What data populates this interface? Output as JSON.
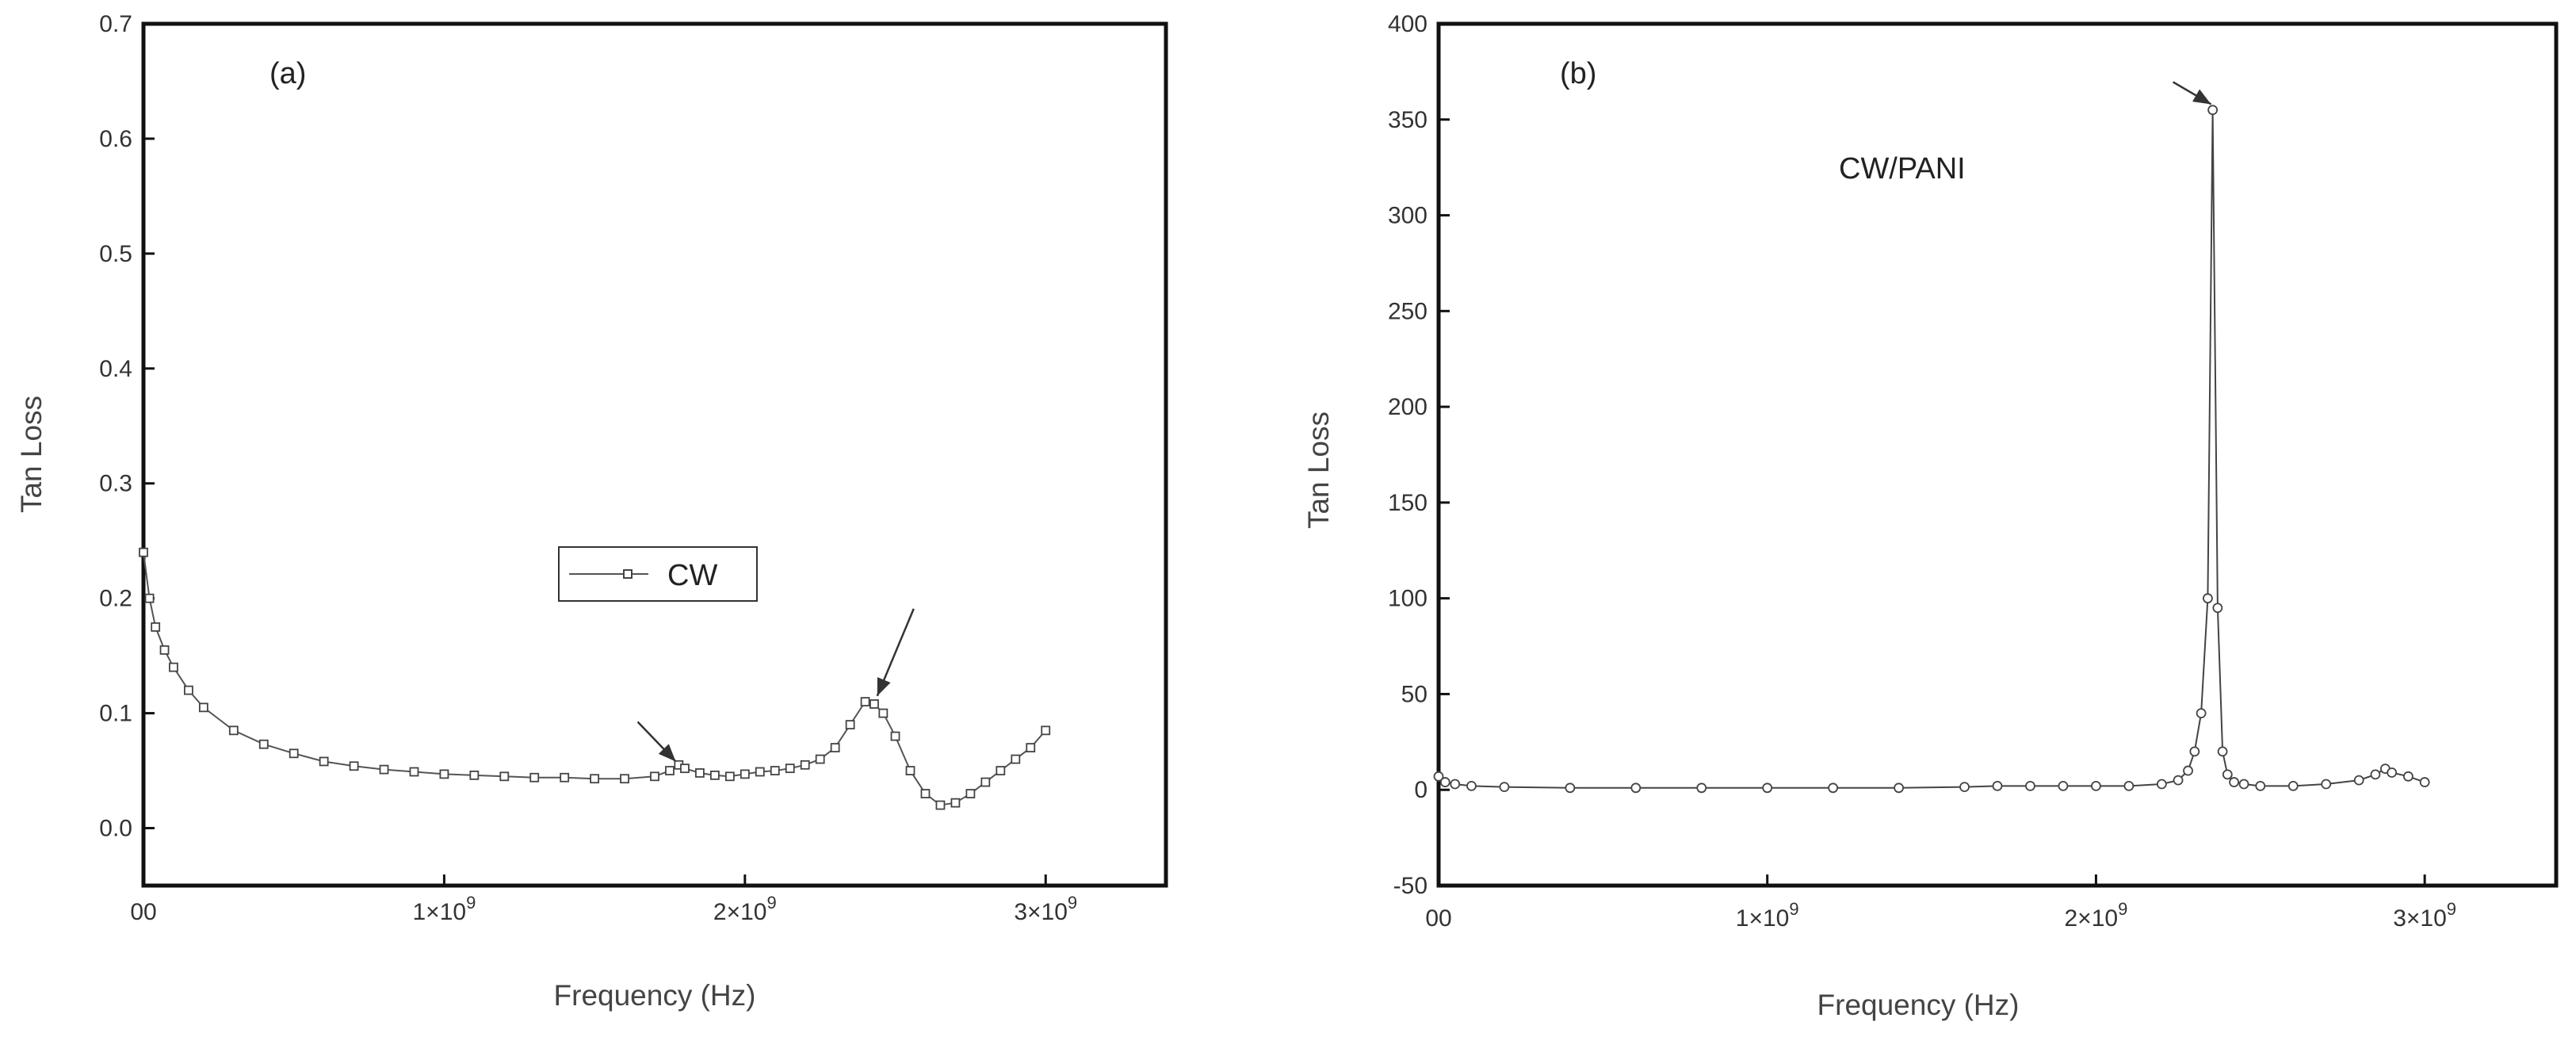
{
  "chart_data": [
    {
      "type": "line",
      "panel_label": "(a)",
      "xlabel": "Frequency (Hz)",
      "ylabel": "Tan Loss",
      "xlim": [
        0,
        3400000000
      ],
      "ylim": [
        -0.05,
        0.7
      ],
      "x_ticks": [
        {
          "value": 0,
          "mant": "00",
          "exp": ""
        },
        {
          "value": 1000000000,
          "mant": "1×10",
          "exp": "9"
        },
        {
          "value": 2000000000,
          "mant": "2×10",
          "exp": "9"
        },
        {
          "value": 3000000000,
          "mant": "3×10",
          "exp": "9"
        }
      ],
      "y_ticks": [
        {
          "value": 0.0,
          "label": "0.0"
        },
        {
          "value": 0.1,
          "label": "0.1"
        },
        {
          "value": 0.2,
          "label": "0.2"
        },
        {
          "value": 0.3,
          "label": "0.3"
        },
        {
          "value": 0.4,
          "label": "0.4"
        },
        {
          "value": 0.5,
          "label": "0.5"
        },
        {
          "value": 0.6,
          "label": "0.6"
        },
        {
          "value": 0.7,
          "label": "0.7"
        }
      ],
      "legend": {
        "position": "center-right",
        "entries": [
          "CW"
        ]
      },
      "series": [
        {
          "name": "CW",
          "color": "#555555",
          "x": [
            0,
            20000000,
            40000000,
            70000000,
            100000000,
            150000000,
            200000000,
            300000000,
            400000000,
            500000000,
            600000000,
            700000000,
            800000000,
            900000000,
            1000000000,
            1100000000,
            1200000000,
            1300000000,
            1400000000,
            1500000000,
            1600000000,
            1700000000,
            1750000000,
            1780000000,
            1800000000,
            1850000000,
            1900000000,
            1950000000,
            2000000000,
            2050000000,
            2100000000,
            2150000000,
            2200000000,
            2250000000,
            2300000000,
            2350000000,
            2400000000,
            2430000000,
            2460000000,
            2500000000,
            2550000000,
            2600000000,
            2650000000,
            2700000000,
            2750000000,
            2800000000,
            2850000000,
            2900000000,
            2950000000,
            3000000000
          ],
          "y": [
            0.24,
            0.2,
            0.175,
            0.155,
            0.14,
            0.12,
            0.105,
            0.085,
            0.073,
            0.065,
            0.058,
            0.054,
            0.051,
            0.049,
            0.047,
            0.046,
            0.045,
            0.044,
            0.044,
            0.043,
            0.043,
            0.045,
            0.05,
            0.055,
            0.052,
            0.048,
            0.046,
            0.045,
            0.047,
            0.049,
            0.05,
            0.052,
            0.055,
            0.06,
            0.07,
            0.09,
            0.11,
            0.108,
            0.1,
            0.08,
            0.05,
            0.03,
            0.02,
            0.022,
            0.03,
            0.04,
            0.05,
            0.06,
            0.07,
            0.085
          ]
        }
      ],
      "arrows": [
        {
          "tip_x": 1770000000,
          "tip_y": 0.058
        },
        {
          "tip_x": 2440000000,
          "tip_y": 0.115
        }
      ]
    },
    {
      "type": "line",
      "panel_label": "(b)",
      "annotation": "CW/PANI",
      "xlabel": "Frequency (Hz)",
      "ylabel": "Tan Loss",
      "xlim": [
        0,
        3400000000
      ],
      "ylim": [
        -50,
        400
      ],
      "x_ticks": [
        {
          "value": 0,
          "mant": "00",
          "exp": ""
        },
        {
          "value": 1000000000,
          "mant": "1×10",
          "exp": "9"
        },
        {
          "value": 2000000000,
          "mant": "2×10",
          "exp": "9"
        },
        {
          "value": 3000000000,
          "mant": "3×10",
          "exp": "9"
        }
      ],
      "y_ticks": [
        {
          "value": -50,
          "label": "-50"
        },
        {
          "value": 0,
          "label": "0"
        },
        {
          "value": 50,
          "label": "50"
        },
        {
          "value": 100,
          "label": "100"
        },
        {
          "value": 150,
          "label": "150"
        },
        {
          "value": 200,
          "label": "200"
        },
        {
          "value": 250,
          "label": "250"
        },
        {
          "value": 300,
          "label": "300"
        },
        {
          "value": 350,
          "label": "350"
        },
        {
          "value": 400,
          "label": "400"
        }
      ],
      "series": [
        {
          "name": "",
          "color": "#555555",
          "x": [
            0,
            20000000,
            50000000,
            100000000,
            200000000,
            400000000,
            600000000,
            800000000,
            1000000000,
            1200000000,
            1400000000,
            1600000000,
            1700000000,
            1800000000,
            1900000000,
            2000000000,
            2100000000,
            2200000000,
            2250000000,
            2280000000,
            2300000000,
            2320000000,
            2340000000,
            2355000000,
            2370000000,
            2385000000,
            2400000000,
            2420000000,
            2450000000,
            2500000000,
            2600000000,
            2700000000,
            2800000000,
            2850000000,
            2880000000,
            2900000000,
            2950000000,
            3000000000
          ],
          "y": [
            7,
            4,
            3,
            2,
            1.5,
            1,
            1,
            1,
            1,
            1,
            1,
            1.5,
            2,
            2,
            2,
            2,
            2,
            3,
            5,
            10,
            20,
            40,
            100,
            355,
            95,
            20,
            8,
            4,
            3,
            2,
            2,
            3,
            5,
            8,
            11,
            9,
            7,
            4
          ]
        }
      ],
      "arrows": [
        {
          "tip_x": 2350000000,
          "tip_y": 358
        }
      ]
    }
  ]
}
